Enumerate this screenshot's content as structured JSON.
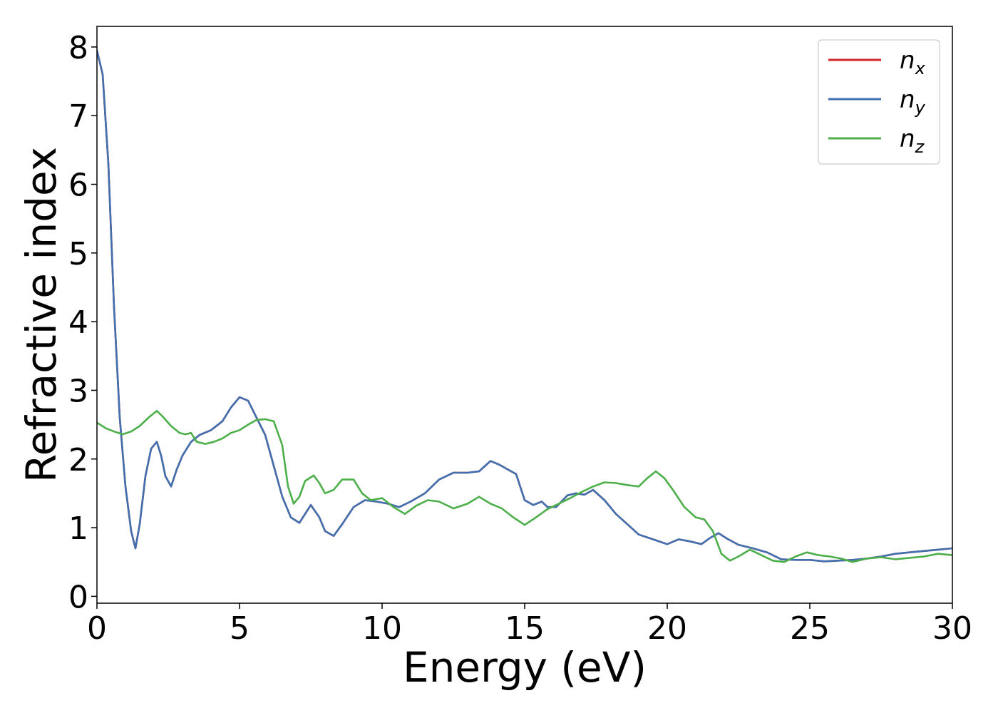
{
  "chart_data": {
    "type": "line",
    "title": "",
    "xlabel": "Energy (eV)",
    "ylabel": "Refractive index",
    "xlim": [
      0,
      30
    ],
    "ylim": [
      -0.1,
      8.3
    ],
    "xticks": [
      0,
      5,
      10,
      15,
      20,
      25,
      30
    ],
    "yticks": [
      0,
      1,
      2,
      3,
      4,
      5,
      6,
      7,
      8
    ],
    "grid": false,
    "legend_position": "top-right",
    "series": [
      {
        "name": "n",
        "subscript": "x",
        "color": "#d62728",
        "x": [
          0,
          0.2,
          0.4,
          0.6,
          0.8,
          1.0,
          1.2,
          1.35,
          1.5,
          1.7,
          1.9,
          2.1,
          2.25,
          2.4,
          2.6,
          2.8,
          3.0,
          3.3,
          3.6,
          4.0,
          4.4,
          4.7,
          5.0,
          5.3,
          5.6,
          5.9,
          6.2,
          6.5,
          6.8,
          7.1,
          7.3,
          7.5,
          7.8,
          8.0,
          8.3,
          8.6,
          9.0,
          9.4,
          9.8,
          10.2,
          10.6,
          11.0,
          11.5,
          12.0,
          12.5,
          13.0,
          13.4,
          13.8,
          14.1,
          14.4,
          14.7,
          15.0,
          15.3,
          15.6,
          15.8,
          16.1,
          16.5,
          16.8,
          17.1,
          17.4,
          17.8,
          18.2,
          18.6,
          19.0,
          19.5,
          20.0,
          20.4,
          20.8,
          21.2,
          21.5,
          21.8,
          22.1,
          22.5,
          23.0,
          23.5,
          24.0,
          24.5,
          25.0,
          25.5,
          26.0,
          26.5,
          27.0,
          27.5,
          28.0,
          28.5,
          29.0,
          29.5,
          30.0
        ],
        "y": [
          7.95,
          7.6,
          6.3,
          4.2,
          2.6,
          1.6,
          0.95,
          0.7,
          1.05,
          1.75,
          2.15,
          2.25,
          2.05,
          1.75,
          1.6,
          1.85,
          2.05,
          2.25,
          2.35,
          2.42,
          2.55,
          2.75,
          2.9,
          2.85,
          2.6,
          2.35,
          1.9,
          1.45,
          1.15,
          1.07,
          1.2,
          1.33,
          1.15,
          0.95,
          0.88,
          1.05,
          1.3,
          1.4,
          1.38,
          1.35,
          1.3,
          1.38,
          1.5,
          1.7,
          1.8,
          1.8,
          1.82,
          1.97,
          1.92,
          1.85,
          1.78,
          1.4,
          1.33,
          1.38,
          1.3,
          1.3,
          1.47,
          1.5,
          1.48,
          1.55,
          1.4,
          1.2,
          1.05,
          0.9,
          0.83,
          0.76,
          0.83,
          0.8,
          0.76,
          0.85,
          0.92,
          0.84,
          0.75,
          0.7,
          0.64,
          0.54,
          0.53,
          0.53,
          0.51,
          0.52,
          0.53,
          0.55,
          0.58,
          0.62,
          0.64,
          0.66,
          0.68,
          0.7
        ]
      },
      {
        "name": "n",
        "subscript": "y",
        "color": "#4170b0",
        "x": [
          0,
          0.2,
          0.4,
          0.6,
          0.8,
          1.0,
          1.2,
          1.35,
          1.5,
          1.7,
          1.9,
          2.1,
          2.25,
          2.4,
          2.6,
          2.8,
          3.0,
          3.3,
          3.6,
          4.0,
          4.4,
          4.7,
          5.0,
          5.3,
          5.6,
          5.9,
          6.2,
          6.5,
          6.8,
          7.1,
          7.3,
          7.5,
          7.8,
          8.0,
          8.3,
          8.6,
          9.0,
          9.4,
          9.8,
          10.2,
          10.6,
          11.0,
          11.5,
          12.0,
          12.5,
          13.0,
          13.4,
          13.8,
          14.1,
          14.4,
          14.7,
          15.0,
          15.3,
          15.6,
          15.8,
          16.1,
          16.5,
          16.8,
          17.1,
          17.4,
          17.8,
          18.2,
          18.6,
          19.0,
          19.5,
          20.0,
          20.4,
          20.8,
          21.2,
          21.5,
          21.8,
          22.1,
          22.5,
          23.0,
          23.5,
          24.0,
          24.5,
          25.0,
          25.5,
          26.0,
          26.5,
          27.0,
          27.5,
          28.0,
          28.5,
          29.0,
          29.5,
          30.0
        ],
        "y": [
          7.95,
          7.6,
          6.3,
          4.2,
          2.6,
          1.6,
          0.95,
          0.7,
          1.05,
          1.75,
          2.15,
          2.25,
          2.05,
          1.75,
          1.6,
          1.85,
          2.05,
          2.25,
          2.35,
          2.42,
          2.55,
          2.75,
          2.9,
          2.85,
          2.6,
          2.35,
          1.9,
          1.45,
          1.15,
          1.07,
          1.2,
          1.33,
          1.15,
          0.95,
          0.88,
          1.05,
          1.3,
          1.4,
          1.38,
          1.35,
          1.3,
          1.38,
          1.5,
          1.7,
          1.8,
          1.8,
          1.82,
          1.97,
          1.92,
          1.85,
          1.78,
          1.4,
          1.33,
          1.38,
          1.3,
          1.3,
          1.47,
          1.5,
          1.48,
          1.55,
          1.4,
          1.2,
          1.05,
          0.9,
          0.83,
          0.76,
          0.83,
          0.8,
          0.76,
          0.85,
          0.92,
          0.84,
          0.75,
          0.7,
          0.64,
          0.54,
          0.53,
          0.53,
          0.51,
          0.52,
          0.53,
          0.55,
          0.58,
          0.62,
          0.64,
          0.66,
          0.68,
          0.7
        ]
      },
      {
        "name": "n",
        "subscript": "z",
        "color": "#4daf4a",
        "x": [
          0,
          0.3,
          0.6,
          0.9,
          1.2,
          1.5,
          1.8,
          2.1,
          2.3,
          2.6,
          2.9,
          3.1,
          3.3,
          3.5,
          3.8,
          4.1,
          4.4,
          4.7,
          5.0,
          5.3,
          5.6,
          5.9,
          6.2,
          6.5,
          6.7,
          6.9,
          7.1,
          7.3,
          7.6,
          7.8,
          8.0,
          8.3,
          8.6,
          9.0,
          9.3,
          9.6,
          10.0,
          10.4,
          10.8,
          11.2,
          11.6,
          12.0,
          12.5,
          13.0,
          13.4,
          13.8,
          14.2,
          14.6,
          15.0,
          15.4,
          15.8,
          16.2,
          16.6,
          17.0,
          17.4,
          17.8,
          18.2,
          18.6,
          19.0,
          19.3,
          19.6,
          19.9,
          20.2,
          20.6,
          21.0,
          21.3,
          21.6,
          21.9,
          22.2,
          22.5,
          22.9,
          23.3,
          23.7,
          24.1,
          24.5,
          24.9,
          25.3,
          25.7,
          26.1,
          26.5,
          27.0,
          27.5,
          28.0,
          28.5,
          29.0,
          29.5,
          30.0
        ],
        "y": [
          2.53,
          2.45,
          2.4,
          2.36,
          2.4,
          2.48,
          2.6,
          2.7,
          2.62,
          2.48,
          2.38,
          2.36,
          2.38,
          2.25,
          2.22,
          2.25,
          2.3,
          2.38,
          2.42,
          2.5,
          2.57,
          2.58,
          2.55,
          2.2,
          1.6,
          1.35,
          1.45,
          1.68,
          1.76,
          1.65,
          1.5,
          1.55,
          1.7,
          1.7,
          1.5,
          1.4,
          1.43,
          1.3,
          1.2,
          1.32,
          1.4,
          1.38,
          1.28,
          1.35,
          1.45,
          1.35,
          1.28,
          1.15,
          1.04,
          1.15,
          1.27,
          1.35,
          1.43,
          1.52,
          1.6,
          1.66,
          1.65,
          1.62,
          1.6,
          1.72,
          1.82,
          1.72,
          1.55,
          1.3,
          1.15,
          1.12,
          0.95,
          0.62,
          0.52,
          0.58,
          0.68,
          0.6,
          0.52,
          0.5,
          0.58,
          0.64,
          0.6,
          0.58,
          0.55,
          0.5,
          0.55,
          0.57,
          0.54,
          0.56,
          0.58,
          0.62,
          0.6
        ]
      }
    ]
  }
}
